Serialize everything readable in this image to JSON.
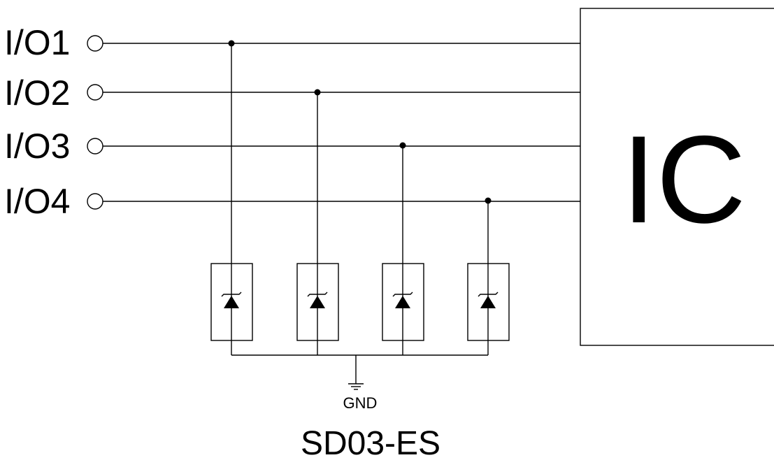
{
  "diagram": {
    "io_pins": [
      {
        "label": "I/O1"
      },
      {
        "label": "I/O2"
      },
      {
        "label": "I/O3"
      },
      {
        "label": "I/O4"
      }
    ],
    "ic_label": "IC",
    "gnd_label": "GND",
    "part_label": "SD03-ES"
  },
  "colors": {
    "line": "#000000",
    "background": "#ffffff"
  }
}
